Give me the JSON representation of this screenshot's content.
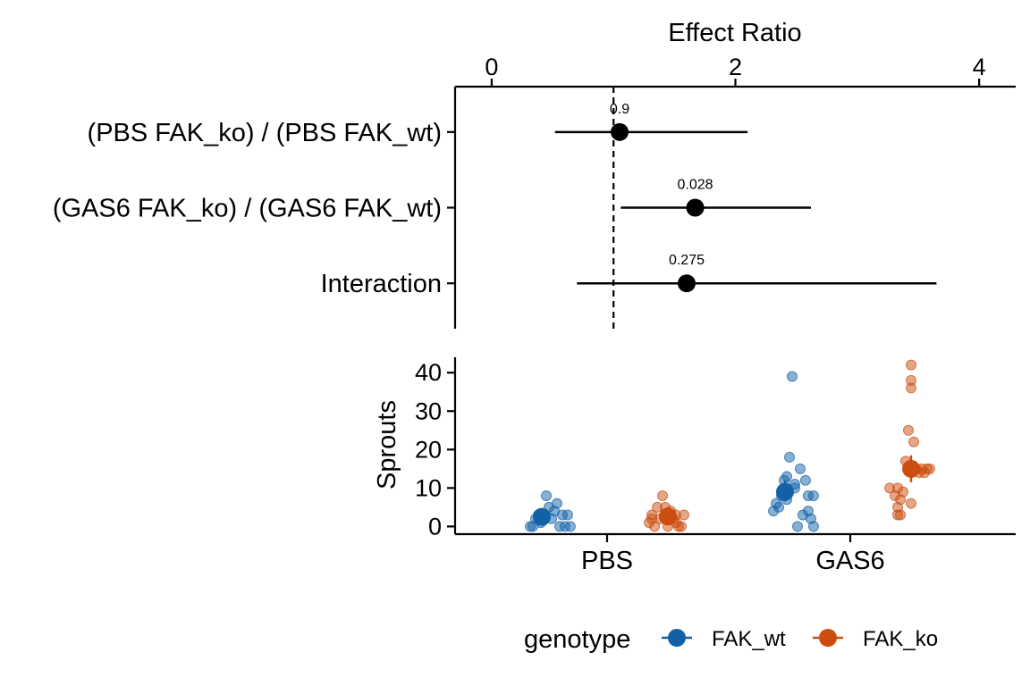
{
  "chart_data": [
    {
      "type": "forest",
      "panel": "effects",
      "xlabel": "Effect Ratio",
      "xlim": [
        -0.3,
        4.3
      ],
      "xticks": [
        0,
        2,
        4
      ],
      "xtick_labels": [
        "0",
        "2",
        "4"
      ],
      "reference_line": 1,
      "rows": [
        {
          "label": "(PBS FAK_ko) / (PBS FAK_wt)",
          "estimate": 1.05,
          "lower": 0.52,
          "upper": 2.1,
          "p_label": "0.9"
        },
        {
          "label": "(GAS6 FAK_ko) / (GAS6 FAK_wt)",
          "estimate": 1.67,
          "lower": 1.06,
          "upper": 2.62,
          "p_label": "0.028"
        },
        {
          "label": "Interaction",
          "estimate": 1.6,
          "lower": 0.7,
          "upper": 3.65,
          "p_label": "0.275"
        }
      ]
    },
    {
      "type": "scatter",
      "panel": "response",
      "ylabel": "Sprouts",
      "ylim": [
        -2,
        44
      ],
      "yticks": [
        0,
        10,
        20,
        30,
        40
      ],
      "ytick_labels": [
        "0",
        "10",
        "20",
        "30",
        "40"
      ],
      "categories": [
        "PBS",
        "GAS6"
      ],
      "legend": {
        "title": "genotype",
        "position": "bottom"
      },
      "series": [
        {
          "name": "FAK_wt",
          "color": "#1261A6",
          "offset": -0.25,
          "means": [
            2.5,
            9
          ],
          "ci": [
            [
              1,
              4
            ],
            [
              6.5,
              12
            ]
          ],
          "points": [
            [
              [
                -0.12,
                0
              ],
              [
                -0.1,
                0
              ],
              [
                -0.08,
                2
              ],
              [
                -0.06,
                3
              ],
              [
                -0.04,
                1
              ],
              [
                -0.02,
                2
              ],
              [
                0.0,
                8
              ],
              [
                0.02,
                5
              ],
              [
                0.04,
                2
              ],
              [
                0.06,
                4
              ],
              [
                0.08,
                6
              ],
              [
                0.1,
                0
              ],
              [
                0.12,
                3
              ],
              [
                0.14,
                0
              ],
              [
                0.16,
                3
              ],
              [
                0.18,
                0
              ]
            ],
            [
              [
                -0.12,
                4
              ],
              [
                -0.1,
                6
              ],
              [
                -0.08,
                5
              ],
              [
                -0.06,
                8
              ],
              [
                -0.04,
                12
              ],
              [
                -0.02,
                13
              ],
              [
                0.0,
                18
              ],
              [
                0.02,
                39
              ],
              [
                0.04,
                10
              ],
              [
                0.06,
                0
              ],
              [
                0.08,
                15
              ],
              [
                0.1,
                3
              ],
              [
                0.12,
                12
              ],
              [
                0.14,
                8
              ],
              [
                0.16,
                2
              ],
              [
                0.18,
                0
              ],
              [
                0.04,
                11
              ],
              [
                -0.02,
                7
              ],
              [
                0.14,
                4
              ],
              [
                0.18,
                8
              ]
            ]
          ]
        },
        {
          "name": "FAK_ko",
          "color": "#CB4D0F",
          "offset": 0.25,
          "means": [
            2.6,
            15
          ],
          "ci": [
            [
              1,
              4.5
            ],
            [
              11.5,
              18.5
            ]
          ],
          "points": [
            [
              [
                -0.14,
                1
              ],
              [
                -0.12,
                3
              ],
              [
                -0.1,
                0
              ],
              [
                -0.08,
                5
              ],
              [
                -0.06,
                2
              ],
              [
                -0.04,
                8
              ],
              [
                -0.02,
                5
              ],
              [
                0.0,
                0
              ],
              [
                0.02,
                4
              ],
              [
                0.04,
                2
              ],
              [
                0.06,
                3
              ],
              [
                0.08,
                0
              ],
              [
                0.1,
                0
              ],
              [
                0.12,
                3
              ],
              [
                -0.12,
                2
              ],
              [
                0.06,
                1
              ]
            ],
            [
              [
                -0.16,
                10
              ],
              [
                -0.12,
                8
              ],
              [
                -0.1,
                3
              ],
              [
                -0.1,
                5
              ],
              [
                -0.08,
                7
              ],
              [
                -0.06,
                9
              ],
              [
                -0.04,
                17
              ],
              [
                -0.02,
                25
              ],
              [
                0.0,
                42
              ],
              [
                0.0,
                38
              ],
              [
                0.0,
                36
              ],
              [
                0.02,
                22
              ],
              [
                0.04,
                15
              ],
              [
                0.06,
                14
              ],
              [
                0.08,
                15
              ],
              [
                0.1,
                14
              ],
              [
                0.12,
                15
              ],
              [
                0.14,
                15
              ],
              [
                -0.08,
                3
              ],
              [
                0.0,
                6
              ],
              [
                -0.1,
                10
              ]
            ]
          ]
        }
      ]
    }
  ]
}
